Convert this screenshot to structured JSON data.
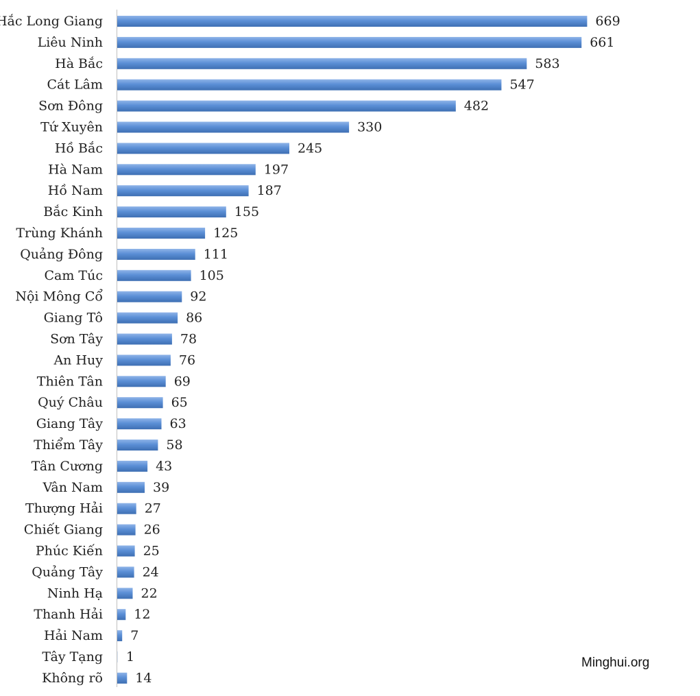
{
  "watermark": "Minghui.org",
  "colors": {
    "bar_fill": "#5b8fd6",
    "bar_highlight": "#8fb4e8",
    "bar_shadow": "#3e6fb3",
    "axis": "#bfbfbf",
    "text": "#222222"
  },
  "chart_data": {
    "type": "bar",
    "orientation": "horizontal",
    "title": "",
    "xlabel": "",
    "ylabel": "",
    "xlim": [
      0,
      700
    ],
    "grid": false,
    "legend": "none",
    "categories": [
      "Hắc Long Giang",
      "Liêu Ninh",
      "Hà Bắc",
      "Cát Lâm",
      "Sơn Đông",
      "Tứ Xuyên",
      "Hồ Bắc",
      "Hà Nam",
      "Hồ Nam",
      "Bắc Kinh",
      "Trùng Khánh",
      "Quảng Đông",
      "Cam Túc",
      "Nội Mông Cổ",
      "Giang Tô",
      "Sơn Tây",
      "An Huy",
      "Thiên Tân",
      "Quý Châu",
      "Giang Tây",
      "Thiểm Tây",
      "Tân Cương",
      "Vân Nam",
      "Thượng Hải",
      "Chiết Giang",
      "Phúc Kiến",
      "Quảng Tây",
      "Ninh Hạ",
      "Thanh Hải",
      "Hải Nam",
      "Tây Tạng",
      "Không rõ"
    ],
    "values": [
      669,
      661,
      583,
      547,
      482,
      330,
      245,
      197,
      187,
      155,
      125,
      111,
      105,
      92,
      86,
      78,
      76,
      69,
      65,
      63,
      58,
      43,
      39,
      27,
      26,
      25,
      24,
      22,
      12,
      7,
      1,
      14
    ],
    "data_labels": [
      "669",
      "661",
      "583",
      "547",
      "482",
      "330",
      "245",
      "197",
      "187",
      "155",
      "125",
      "111",
      "105",
      "92",
      "86",
      "78",
      "76",
      "69",
      "65",
      "63",
      "58",
      "43",
      "39",
      "27",
      "26",
      "25",
      "24",
      "22",
      "12",
      "7",
      "1",
      "14"
    ]
  }
}
